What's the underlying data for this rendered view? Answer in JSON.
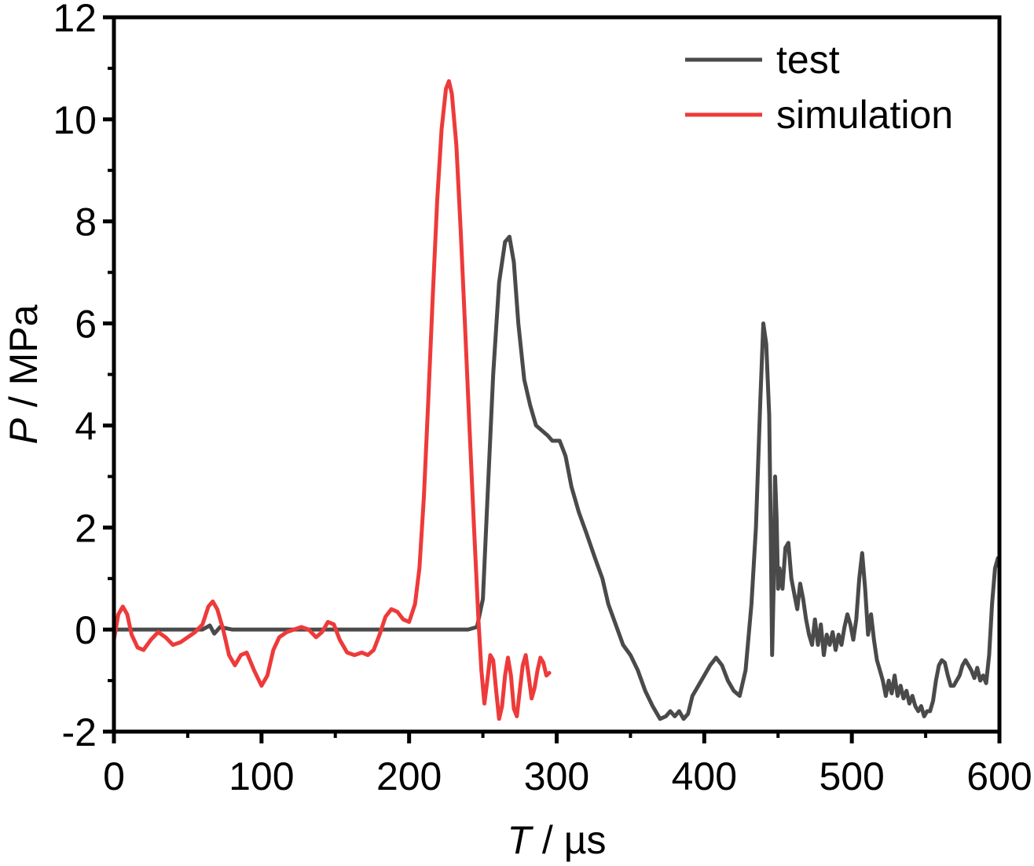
{
  "chart_data": {
    "type": "line",
    "xlabel_symbol": "T",
    "xlabel_unit": " / µs",
    "ylabel_symbol": "P",
    "ylabel_unit": " / MPa",
    "xlim": [
      0,
      600
    ],
    "ylim": [
      -2,
      12
    ],
    "xticks": [
      0,
      100,
      200,
      300,
      400,
      500,
      600
    ],
    "yticks": [
      -2,
      0,
      2,
      4,
      6,
      8,
      10,
      12
    ],
    "x_minor_step": 50,
    "y_minor_step": 1,
    "grid": false,
    "legend_position": "top-right",
    "series": [
      {
        "name": "test",
        "color": "#4a4a4a",
        "points": [
          [
            0,
            0
          ],
          [
            60,
            0
          ],
          [
            65,
            0.08
          ],
          [
            68,
            -0.08
          ],
          [
            72,
            0.05
          ],
          [
            80,
            0
          ],
          [
            150,
            0
          ],
          [
            200,
            0
          ],
          [
            240,
            0
          ],
          [
            246,
            0.05
          ],
          [
            250,
            0.6
          ],
          [
            253,
            2.5
          ],
          [
            257,
            5
          ],
          [
            261,
            6.8
          ],
          [
            265,
            7.6
          ],
          [
            268,
            7.7
          ],
          [
            271,
            7.2
          ],
          [
            274,
            6.0
          ],
          [
            278,
            4.9
          ],
          [
            282,
            4.4
          ],
          [
            286,
            4.0
          ],
          [
            290,
            3.9
          ],
          [
            294,
            3.8
          ],
          [
            297,
            3.7
          ],
          [
            302,
            3.7
          ],
          [
            306,
            3.4
          ],
          [
            310,
            2.8
          ],
          [
            315,
            2.3
          ],
          [
            320,
            1.9
          ],
          [
            326,
            1.4
          ],
          [
            331,
            1.0
          ],
          [
            335,
            0.5
          ],
          [
            340,
            0.1
          ],
          [
            345,
            -0.3
          ],
          [
            350,
            -0.5
          ],
          [
            355,
            -0.8
          ],
          [
            360,
            -1.2
          ],
          [
            365,
            -1.5
          ],
          [
            370,
            -1.75
          ],
          [
            374,
            -1.7
          ],
          [
            377,
            -1.6
          ],
          [
            380,
            -1.7
          ],
          [
            383,
            -1.6
          ],
          [
            386,
            -1.75
          ],
          [
            389,
            -1.65
          ],
          [
            392,
            -1.3
          ],
          [
            396,
            -1.1
          ],
          [
            400,
            -0.9
          ],
          [
            404,
            -0.7
          ],
          [
            408,
            -0.55
          ],
          [
            412,
            -0.7
          ],
          [
            416,
            -1.0
          ],
          [
            420,
            -1.2
          ],
          [
            424,
            -1.3
          ],
          [
            428,
            -0.8
          ],
          [
            432,
            0.5
          ],
          [
            435,
            2.0
          ],
          [
            438,
            4.5
          ],
          [
            440,
            6.0
          ],
          [
            442,
            5.6
          ],
          [
            444,
            4.2
          ],
          [
            445,
            2.0
          ],
          [
            446,
            -0.5
          ],
          [
            447,
            0.8
          ],
          [
            448,
            3.0
          ],
          [
            449,
            2.2
          ],
          [
            450,
            0.8
          ],
          [
            451,
            1.2
          ],
          [
            453,
            0.8
          ],
          [
            455,
            1.6
          ],
          [
            457,
            1.7
          ],
          [
            459,
            1.0
          ],
          [
            461,
            0.7
          ],
          [
            463,
            0.4
          ],
          [
            465,
            0.9
          ],
          [
            467,
            0.6
          ],
          [
            469,
            0.2
          ],
          [
            471,
            -0.1
          ],
          [
            473,
            -0.3
          ],
          [
            475,
            0.2
          ],
          [
            477,
            -0.3
          ],
          [
            479,
            0.1
          ],
          [
            481,
            -0.5
          ],
          [
            483,
            -0.1
          ],
          [
            485,
            -0.3
          ],
          [
            487,
            -0.05
          ],
          [
            489,
            -0.4
          ],
          [
            491,
            -0.1
          ],
          [
            493,
            -0.3
          ],
          [
            495,
            0.05
          ],
          [
            497,
            0.3
          ],
          [
            499,
            0.1
          ],
          [
            501,
            -0.2
          ],
          [
            503,
            0.2
          ],
          [
            505,
            1.0
          ],
          [
            507,
            1.5
          ],
          [
            509,
            0.8
          ],
          [
            511,
            -0.1
          ],
          [
            513,
            0.3
          ],
          [
            515,
            -0.2
          ],
          [
            517,
            -0.6
          ],
          [
            519,
            -0.8
          ],
          [
            521,
            -1.0
          ],
          [
            523,
            -1.3
          ],
          [
            525,
            -1.0
          ],
          [
            527,
            -1.25
          ],
          [
            529,
            -0.9
          ],
          [
            531,
            -1.3
          ],
          [
            533,
            -1.1
          ],
          [
            535,
            -1.35
          ],
          [
            537,
            -1.2
          ],
          [
            539,
            -1.45
          ],
          [
            541,
            -1.3
          ],
          [
            543,
            -1.5
          ],
          [
            545,
            -1.6
          ],
          [
            547,
            -1.5
          ],
          [
            549,
            -1.7
          ],
          [
            551,
            -1.6
          ],
          [
            553,
            -1.6
          ],
          [
            555,
            -1.4
          ],
          [
            557,
            -1.0
          ],
          [
            559,
            -0.7
          ],
          [
            561,
            -0.6
          ],
          [
            563,
            -0.65
          ],
          [
            565,
            -0.9
          ],
          [
            567,
            -1.1
          ],
          [
            569,
            -1.1
          ],
          [
            571,
            -1.0
          ],
          [
            573,
            -0.9
          ],
          [
            575,
            -0.7
          ],
          [
            577,
            -0.6
          ],
          [
            579,
            -0.7
          ],
          [
            581,
            -0.8
          ],
          [
            583,
            -0.95
          ],
          [
            585,
            -0.75
          ],
          [
            587,
            -1.0
          ],
          [
            589,
            -0.9
          ],
          [
            591,
            -1.05
          ],
          [
            593,
            -0.5
          ],
          [
            595,
            0.5
          ],
          [
            597,
            1.2
          ],
          [
            599,
            1.4
          ]
        ]
      },
      {
        "name": "simulation",
        "color": "#ee3a3a",
        "points": [
          [
            0,
            -0.2
          ],
          [
            3,
            0.3
          ],
          [
            6,
            0.45
          ],
          [
            9,
            0.3
          ],
          [
            12,
            -0.1
          ],
          [
            16,
            -0.35
          ],
          [
            20,
            -0.4
          ],
          [
            25,
            -0.2
          ],
          [
            30,
            -0.05
          ],
          [
            35,
            -0.15
          ],
          [
            40,
            -0.3
          ],
          [
            45,
            -0.25
          ],
          [
            50,
            -0.15
          ],
          [
            55,
            -0.05
          ],
          [
            60,
            0.1
          ],
          [
            64,
            0.45
          ],
          [
            67,
            0.55
          ],
          [
            70,
            0.4
          ],
          [
            74,
            0.0
          ],
          [
            78,
            -0.5
          ],
          [
            82,
            -0.7
          ],
          [
            86,
            -0.5
          ],
          [
            90,
            -0.45
          ],
          [
            95,
            -0.8
          ],
          [
            100,
            -1.1
          ],
          [
            104,
            -0.9
          ],
          [
            108,
            -0.4
          ],
          [
            112,
            -0.15
          ],
          [
            117,
            -0.05
          ],
          [
            122,
            0.0
          ],
          [
            127,
            0.05
          ],
          [
            132,
            0.0
          ],
          [
            137,
            -0.15
          ],
          [
            141,
            -0.05
          ],
          [
            145,
            0.15
          ],
          [
            149,
            0.1
          ],
          [
            153,
            -0.2
          ],
          [
            158,
            -0.45
          ],
          [
            163,
            -0.5
          ],
          [
            168,
            -0.45
          ],
          [
            172,
            -0.5
          ],
          [
            176,
            -0.4
          ],
          [
            180,
            -0.1
          ],
          [
            184,
            0.25
          ],
          [
            188,
            0.4
          ],
          [
            192,
            0.35
          ],
          [
            196,
            0.2
          ],
          [
            200,
            0.15
          ],
          [
            204,
            0.5
          ],
          [
            207,
            1.2
          ],
          [
            210,
            2.6
          ],
          [
            213,
            4.5
          ],
          [
            216,
            6.5
          ],
          [
            219,
            8.4
          ],
          [
            222,
            9.8
          ],
          [
            225,
            10.6
          ],
          [
            227,
            10.75
          ],
          [
            229,
            10.5
          ],
          [
            232,
            9.5
          ],
          [
            235,
            7.8
          ],
          [
            238,
            5.9
          ],
          [
            241,
            3.9
          ],
          [
            244,
            2.0
          ],
          [
            247,
            0.2
          ],
          [
            249,
            -0.8
          ],
          [
            251,
            -1.45
          ],
          [
            253,
            -1.0
          ],
          [
            255,
            -0.5
          ],
          [
            257,
            -0.6
          ],
          [
            259,
            -1.2
          ],
          [
            261,
            -1.75
          ],
          [
            263,
            -1.5
          ],
          [
            265,
            -0.9
          ],
          [
            267,
            -0.55
          ],
          [
            269,
            -0.9
          ],
          [
            271,
            -1.55
          ],
          [
            273,
            -1.7
          ],
          [
            275,
            -1.2
          ],
          [
            277,
            -0.7
          ],
          [
            279,
            -0.5
          ],
          [
            281,
            -0.9
          ],
          [
            283,
            -1.35
          ],
          [
            285,
            -1.15
          ],
          [
            287,
            -0.8
          ],
          [
            289,
            -0.55
          ],
          [
            291,
            -0.65
          ],
          [
            293,
            -0.9
          ],
          [
            295,
            -0.85
          ]
        ]
      }
    ]
  }
}
